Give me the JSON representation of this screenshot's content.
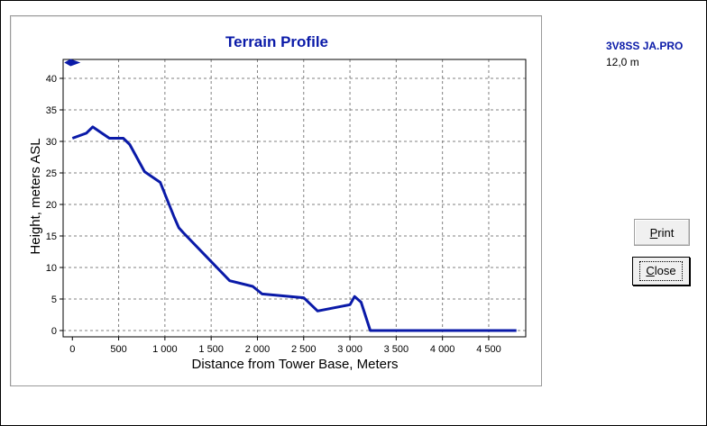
{
  "window": {
    "file_name": "3V8SS JA.PRO",
    "height_value": "12,0 m"
  },
  "buttons": {
    "print_label": "Print",
    "print_mnemonic": "P",
    "print_rest": "rint",
    "close_label": "Close",
    "close_mnemonic": "C",
    "close_rest": "lose"
  },
  "colors": {
    "series": "#0a1aa8",
    "title": "#0a1aa8",
    "grid": "#808080",
    "axis": "#000000"
  },
  "chart_data": {
    "type": "line",
    "title": "Terrain Profile",
    "xlabel": "Distance from Tower Base, Meters",
    "ylabel": "Height, meters ASL",
    "xlim": [
      -100,
      4900
    ],
    "ylim": [
      -1,
      43
    ],
    "xticks": [
      0,
      500,
      1000,
      1500,
      2000,
      2500,
      3000,
      3500,
      4000,
      4500
    ],
    "xtick_labels": [
      "0",
      "500",
      "1 000",
      "1 500",
      "2 000",
      "2 500",
      "3 000",
      "3 500",
      "4 000",
      "4 500"
    ],
    "yticks": [
      0,
      5,
      10,
      15,
      20,
      25,
      30,
      35,
      40
    ],
    "ytick_labels": [
      "0",
      "5",
      "10",
      "15",
      "20",
      "25",
      "30",
      "35",
      "40"
    ],
    "grid": true,
    "tower_marker": {
      "x": 0,
      "y": 42.5
    },
    "x": [
      0,
      150,
      220,
      300,
      400,
      550,
      620,
      780,
      950,
      1100,
      1150,
      1200,
      1450,
      1700,
      1950,
      2050,
      2500,
      2650,
      3000,
      3050,
      3120,
      3220,
      4800
    ],
    "y": [
      30.5,
      31.3,
      32.3,
      31.5,
      30.5,
      30.5,
      29.5,
      25.2,
      23.5,
      18.0,
      16.3,
      15.5,
      11.7,
      7.9,
      7.0,
      5.8,
      5.2,
      3.1,
      4.1,
      5.4,
      4.5,
      0,
      0
    ]
  }
}
